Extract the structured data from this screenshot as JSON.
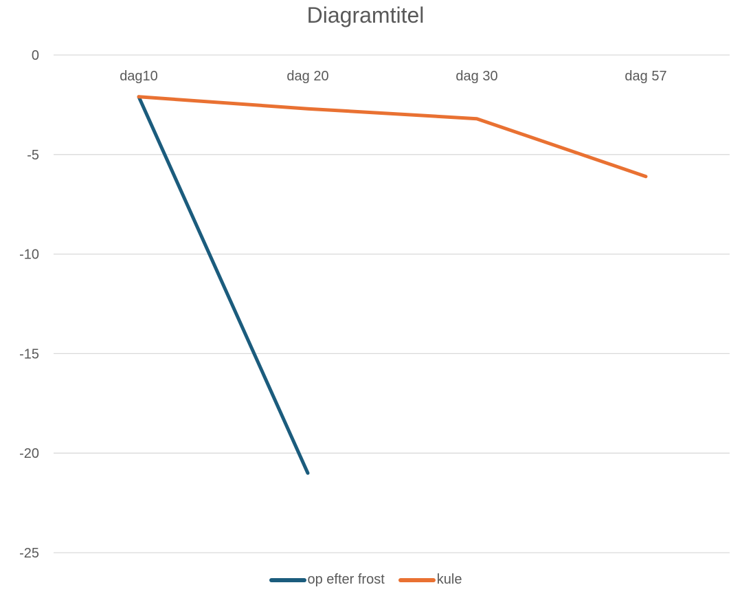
{
  "chart_data": {
    "type": "line",
    "title": "Diagramtitel",
    "categories": [
      "dag10",
      "dag 20",
      "dag 30",
      "dag 57"
    ],
    "series": [
      {
        "name": "op efter frost",
        "values": [
          -2.1,
          -21.0,
          null,
          null
        ],
        "color": "#1B5C7D"
      },
      {
        "name": "kule",
        "values": [
          -2.1,
          -2.7,
          -3.2,
          -6.1
        ],
        "color": "#E97132"
      }
    ],
    "ylim": [
      -25,
      0
    ],
    "yticks": [
      0,
      -5,
      -10,
      -15,
      -20,
      -25
    ],
    "grid": true,
    "legend_position": "bottom"
  }
}
